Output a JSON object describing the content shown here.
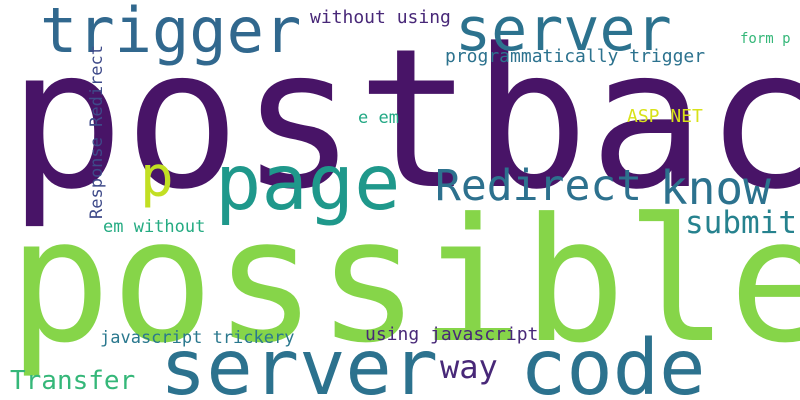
{
  "words": [
    {
      "text": "postback",
      "color": "#481467"
    },
    {
      "text": "possible",
      "color": "#86d549"
    },
    {
      "text": "server",
      "color": "#2c728e"
    },
    {
      "text": "code",
      "color": "#2c728e"
    },
    {
      "text": "page",
      "color": "#1f988b"
    },
    {
      "text": "trigger",
      "color": "#31688e"
    },
    {
      "text": "server",
      "color": "#2c728e"
    },
    {
      "text": "Redirect",
      "color": "#2d718e"
    },
    {
      "text": "know",
      "color": "#2c728e"
    },
    {
      "text": "p",
      "color": "#c2df23"
    },
    {
      "text": "submit",
      "color": "#26828e"
    },
    {
      "text": "Transfer",
      "color": "#35b779"
    },
    {
      "text": "way",
      "color": "#482878"
    },
    {
      "text": "programmatically trigger",
      "color": "#2c728e"
    },
    {
      "text": "without using",
      "color": "#482878"
    },
    {
      "text": "using javascript",
      "color": "#482878"
    },
    {
      "text": "javascript trickery",
      "color": "#2a788e"
    },
    {
      "text": "em without",
      "color": "#25ab82"
    },
    {
      "text": "ASP NET",
      "color": "#d8e219"
    },
    {
      "text": "e em",
      "color": "#22a884"
    },
    {
      "text": "form p",
      "color": "#35b779"
    },
    {
      "text": "Response Redirect",
      "color": "#3e4a89"
    }
  ]
}
